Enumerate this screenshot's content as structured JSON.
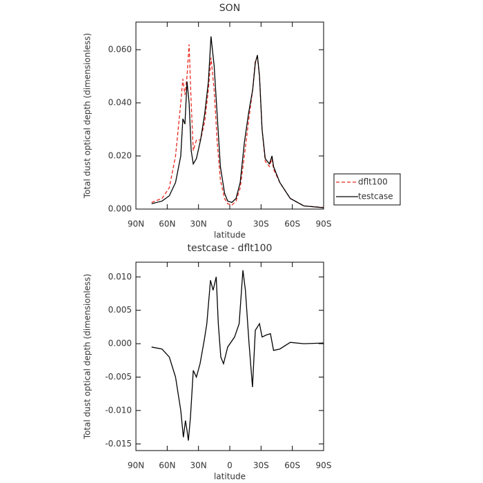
{
  "chart_data": [
    {
      "type": "line",
      "title": "SON",
      "xlabel": "latitude",
      "ylabel": "Total dust optical depth (dimensionless)",
      "x": [
        75,
        65,
        58,
        52,
        47,
        45,
        43,
        41,
        39,
        37,
        35,
        32,
        28,
        24,
        20.5,
        18,
        15,
        12,
        9,
        5,
        2,
        -2,
        -6,
        -10,
        -14,
        -18,
        -22,
        -24.5,
        -26.5,
        -28.5,
        -31,
        -34,
        -38,
        -40.5,
        -42,
        -48,
        -58,
        -71,
        -90
      ],
      "series": [
        {
          "name": "dflt100",
          "color": "#e8281e",
          "dashed": true,
          "values": [
            0.0025,
            0.004,
            0.008,
            0.02,
            0.04,
            0.049,
            0.043,
            0.05,
            0.062,
            0.04,
            0.022,
            0.026,
            0.026,
            0.033,
            0.045,
            0.057,
            0.045,
            0.025,
            0.011,
            0.004,
            0.002,
            0.0015,
            0.003,
            0.008,
            0.02,
            0.033,
            0.045,
            0.056,
            0.057,
            0.05,
            0.03,
            0.018,
            0.016,
            0.019,
            0.015,
            0.01,
            0.004,
            0.0012,
            0.0006
          ]
        },
        {
          "name": "testcase",
          "color": "#000000",
          "dashed": false,
          "values": [
            0.002,
            0.003,
            0.005,
            0.01,
            0.02,
            0.034,
            0.032,
            0.048,
            0.04,
            0.022,
            0.017,
            0.019,
            0.026,
            0.036,
            0.048,
            0.065,
            0.054,
            0.035,
            0.016,
            0.006,
            0.003,
            0.0025,
            0.004,
            0.01,
            0.025,
            0.036,
            0.045,
            0.055,
            0.058,
            0.05,
            0.03,
            0.019,
            0.017,
            0.02,
            0.016,
            0.01,
            0.004,
            0.0012,
            0.0005
          ]
        }
      ],
      "xlim": [
        90,
        -90
      ],
      "xticks": [
        {
          "value": 90,
          "label": "90N"
        },
        {
          "value": 60,
          "label": "60N"
        },
        {
          "value": 30,
          "label": "30N"
        },
        0,
        {
          "value": -30,
          "label": "30S"
        },
        {
          "value": -60,
          "label": "60S"
        },
        {
          "value": -90,
          "label": "90S"
        }
      ],
      "ylim": [
        0,
        0.0704
      ],
      "yticks": [
        {
          "value": 0,
          "label": "0.000"
        },
        {
          "value": 0.02,
          "label": "0.020"
        },
        {
          "value": 0.04,
          "label": "0.040"
        },
        {
          "value": 0.06,
          "label": "0.060"
        }
      ],
      "legend": "right"
    },
    {
      "type": "line",
      "title": "testcase - dflt100",
      "xlabel": "latitude",
      "ylabel": "Total dust optical depth (dimensionless)",
      "x": [
        75,
        65,
        58,
        52,
        47,
        44.5,
        42.5,
        41,
        39.7,
        37.7,
        35,
        32,
        28.5,
        24.5,
        22,
        18.5,
        16,
        13,
        11,
        8.6,
        6,
        2,
        -4.6,
        -9,
        -12.6,
        -15,
        -18.5,
        -21.8,
        -24.5,
        -28.5,
        -31,
        -35,
        -39,
        -42,
        -48,
        -58,
        -71,
        -90
      ],
      "series": [
        {
          "name": "testcase - dflt100",
          "color": "#000000",
          "dashed": false,
          "values": [
            -0.0005,
            -0.0008,
            -0.002,
            -0.005,
            -0.01,
            -0.014,
            -0.0115,
            -0.013,
            -0.0145,
            -0.011,
            -0.004,
            -0.005,
            -0.003,
            0.0005,
            0.003,
            0.0095,
            0.008,
            0.01,
            0.003,
            -0.002,
            -0.003,
            -0.0005,
            0.001,
            0.003,
            0.011,
            0.008,
            0.0,
            -0.0065,
            0.002,
            0.003,
            0.001,
            0.0013,
            0.0015,
            -0.001,
            -0.0008,
            0.0002,
            0,
            0.0001
          ]
        }
      ],
      "xlim": [
        90,
        -90
      ],
      "xticks": [
        {
          "value": 90,
          "label": "90N"
        },
        {
          "value": 60,
          "label": "60N"
        },
        {
          "value": 30,
          "label": "30N"
        },
        0,
        {
          "value": -30,
          "label": "30S"
        },
        {
          "value": -60,
          "label": "60S"
        },
        {
          "value": -90,
          "label": "90S"
        }
      ],
      "ylim": [
        -0.016,
        0.0122
      ],
      "yticks": [
        {
          "value": -0.015,
          "label": "-0.015"
        },
        {
          "value": -0.01,
          "label": "-0.010"
        },
        {
          "value": -0.005,
          "label": "-0.005"
        },
        {
          "value": 0,
          "label": "0.000"
        },
        {
          "value": 0.005,
          "label": "0.005"
        },
        {
          "value": 0.01,
          "label": "0.010"
        }
      ]
    }
  ]
}
